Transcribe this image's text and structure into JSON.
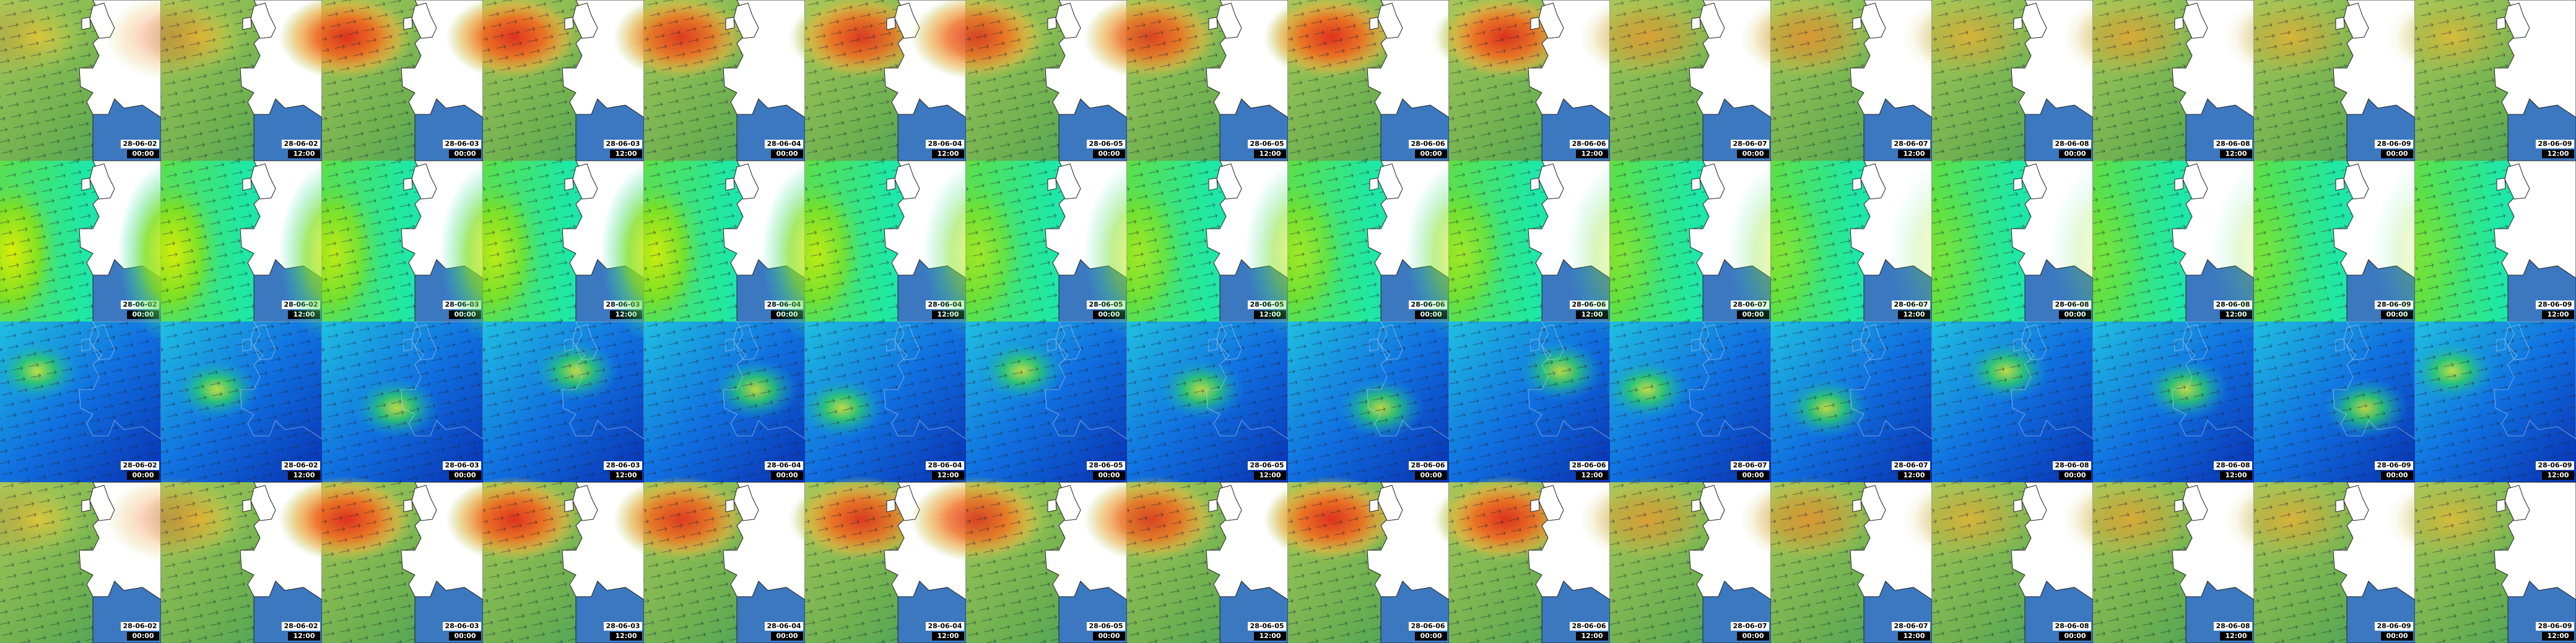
{
  "columns": [
    {
      "date": "28-06-02",
      "time": "00:00"
    },
    {
      "date": "28-06-02",
      "time": "12:00"
    },
    {
      "date": "28-06-03",
      "time": "00:00"
    },
    {
      "date": "28-06-03",
      "time": "12:00"
    },
    {
      "date": "28-06-04",
      "time": "00:00"
    },
    {
      "date": "28-06-04",
      "time": "12:00"
    },
    {
      "date": "28-06-05",
      "time": "00:00"
    },
    {
      "date": "28-06-05",
      "time": "12:00"
    },
    {
      "date": "28-06-06",
      "time": "00:00"
    },
    {
      "date": "28-06-06",
      "time": "12:00"
    },
    {
      "date": "28-06-07",
      "time": "00:00"
    },
    {
      "date": "28-06-07",
      "time": "12:00"
    },
    {
      "date": "28-06-08",
      "time": "00:00"
    },
    {
      "date": "28-06-08",
      "time": "12:00"
    },
    {
      "date": "28-06-09",
      "time": "00:00"
    },
    {
      "date": "28-06-09",
      "time": "12:00"
    }
  ]
}
